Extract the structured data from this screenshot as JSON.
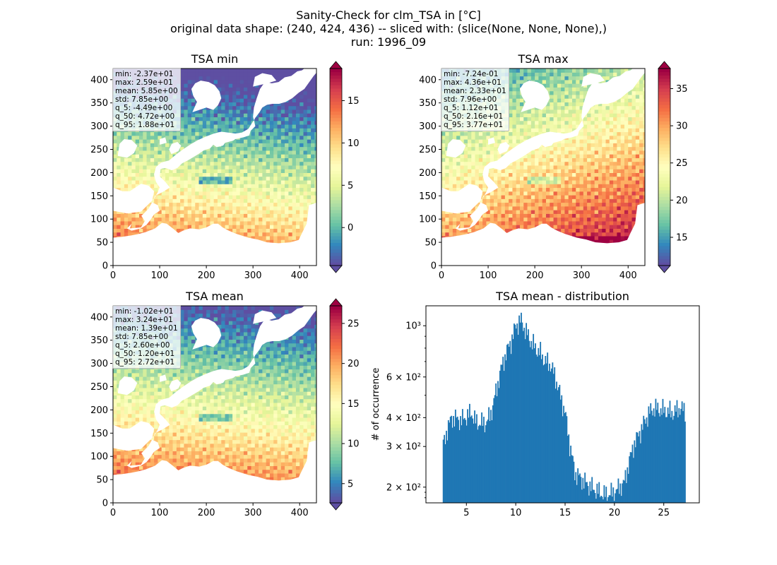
{
  "title_lines": [
    "Sanity-Check for clm_TSA in [°C]",
    "original data shape: (240, 424, 436) -- sliced with: (slice(None, None, None),)",
    "run: 1996_09"
  ],
  "chart_data": [
    {
      "type": "heatmap",
      "title": "TSA min",
      "xlim": [
        0,
        436
      ],
      "ylim": [
        0,
        424
      ],
      "x_ticks": [
        0,
        100,
        200,
        300,
        400
      ],
      "y_ticks": [
        0,
        50,
        100,
        150,
        200,
        250,
        300,
        350,
        400
      ],
      "colormap": "Spectral_r",
      "colorbar_range": [
        -4.49,
        18.8
      ],
      "colorbar_ticks": [
        0,
        5,
        10,
        15
      ],
      "colorbar_tick_labels": [
        "0",
        "5",
        "10",
        "15"
      ],
      "stats": [
        "min: -2.37e+01",
        "max: 2.59e+01",
        "mean: 5.85e+00",
        "std: 7.85e+00",
        "q_5: -4.49e+00",
        "q_50: 4.72e+00",
        "q_95: 1.88e+01"
      ]
    },
    {
      "type": "heatmap",
      "title": "TSA max",
      "xlim": [
        0,
        436
      ],
      "ylim": [
        0,
        424
      ],
      "x_ticks": [
        0,
        100,
        200,
        300,
        400
      ],
      "y_ticks": [
        0,
        50,
        100,
        150,
        200,
        250,
        300,
        350,
        400
      ],
      "colormap": "Spectral_r",
      "colorbar_range": [
        11.2,
        37.7
      ],
      "colorbar_ticks": [
        15,
        20,
        25,
        30,
        35
      ],
      "colorbar_tick_labels": [
        "15",
        "20",
        "25",
        "30",
        "35"
      ],
      "stats": [
        "min: -7.24e-01",
        "max: 4.36e+01",
        "mean: 2.33e+01",
        "std: 7.96e+00",
        "q_5: 1.12e+01",
        "q_50: 2.16e+01",
        "q_95: 3.77e+01"
      ]
    },
    {
      "type": "heatmap",
      "title": "TSA mean",
      "xlim": [
        0,
        436
      ],
      "ylim": [
        0,
        424
      ],
      "x_ticks": [
        0,
        100,
        200,
        300,
        400
      ],
      "y_ticks": [
        0,
        50,
        100,
        150,
        200,
        250,
        300,
        350,
        400
      ],
      "colormap": "Spectral_r",
      "colorbar_range": [
        2.6,
        27.2
      ],
      "colorbar_ticks": [
        5,
        10,
        15,
        20,
        25
      ],
      "colorbar_tick_labels": [
        "5",
        "10",
        "15",
        "20",
        "25"
      ],
      "stats": [
        "min: -1.02e+01",
        "max: 3.24e+01",
        "mean: 1.39e+01",
        "std: 7.85e+00",
        "q_5: 2.60e+00",
        "q_50: 1.20e+01",
        "q_95: 2.72e+01"
      ]
    },
    {
      "type": "bar",
      "title": "TSA mean - distribution",
      "ylabel": "# of occurrence",
      "yscale": "log",
      "xlim": [
        0.9,
        28.6
      ],
      "ylim": [
        171,
        1220
      ],
      "x_ticks": [
        5,
        10,
        15,
        20,
        25
      ],
      "x_tick_labels": [
        "5",
        "10",
        "15",
        "20",
        "25"
      ],
      "y_ticks": [
        200,
        300,
        400,
        600,
        1000
      ],
      "y_tick_labels": [
        "2 × 10²",
        "3 × 10²",
        "4 × 10²",
        "6 × 10²",
        "10³"
      ],
      "bar_color": "#1f77b4",
      "bin_start": 2.6,
      "bin_end": 27.2,
      "anchor_points": {
        "x": [
          2.6,
          3.0,
          3.5,
          4.5,
          5.5,
          6.0,
          7.0,
          7.5,
          8.0,
          8.5,
          9.0,
          9.5,
          10.0,
          10.5,
          11.0,
          11.5,
          12.0,
          12.5,
          13.0,
          13.5,
          14.0,
          14.5,
          15.0,
          15.5,
          16.0,
          16.5,
          17.0,
          18.0,
          19.0,
          20.0,
          21.0,
          21.5,
          22.0,
          22.5,
          23.0,
          23.5,
          24.0,
          25.0,
          26.0,
          26.5,
          27.2
        ],
        "y": [
          300,
          350,
          400,
          390,
          420,
          380,
          380,
          420,
          520,
          650,
          760,
          850,
          1000,
          1060,
          950,
          860,
          800,
          760,
          700,
          680,
          600,
          500,
          420,
          300,
          230,
          220,
          210,
          195,
          185,
          190,
          210,
          260,
          310,
          340,
          380,
          420,
          440,
          430,
          420,
          440,
          430
        ]
      }
    }
  ]
}
